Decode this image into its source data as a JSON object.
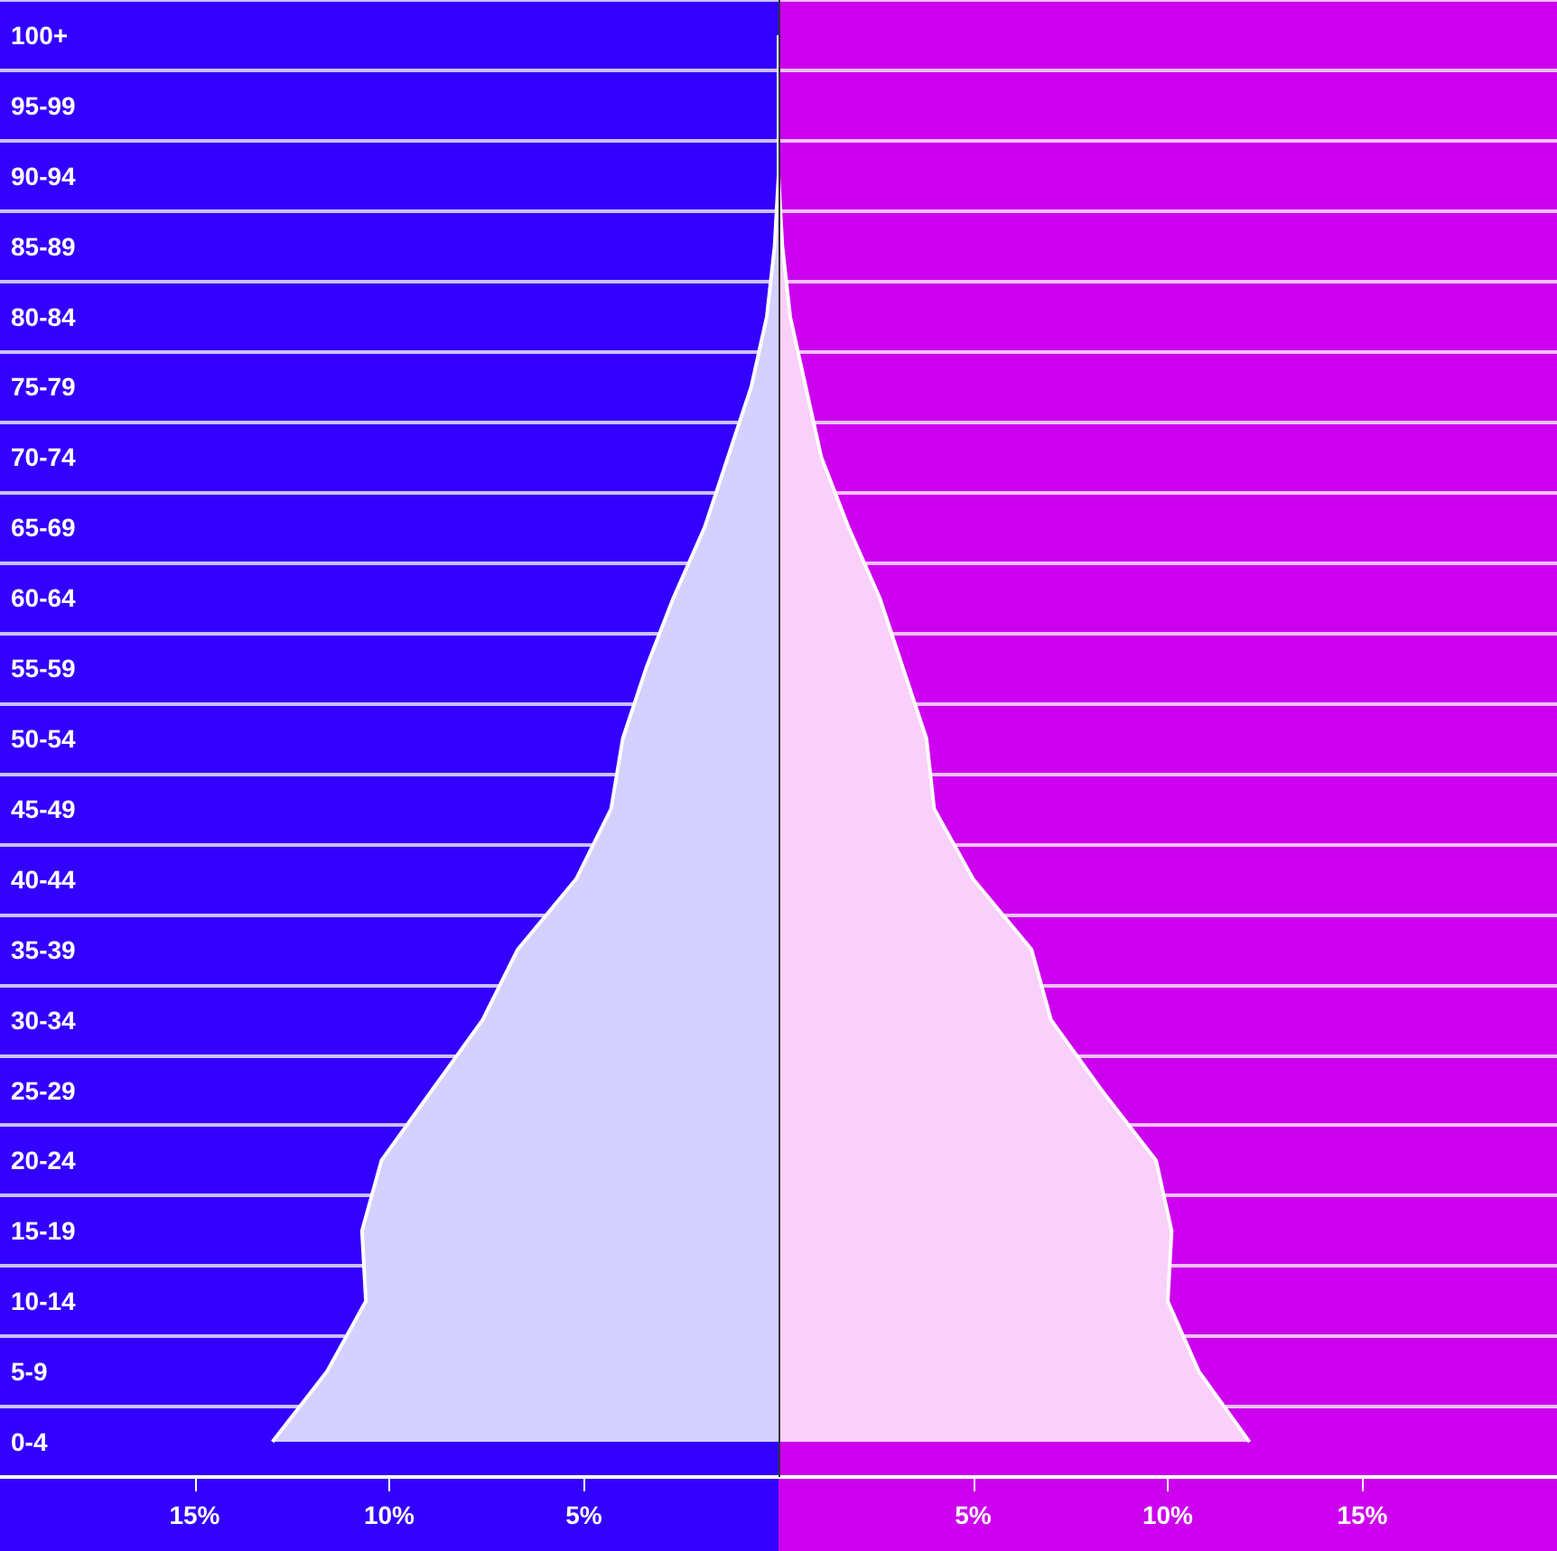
{
  "chart_data": {
    "type": "area",
    "orientation": "horizontal",
    "categories": [
      "100+",
      "95-99",
      "90-94",
      "85-89",
      "80-84",
      "75-79",
      "70-74",
      "65-69",
      "60-64",
      "55-59",
      "50-54",
      "45-49",
      "40-44",
      "35-39",
      "30-34",
      "25-29",
      "20-24",
      "15-19",
      "10-14",
      "5-9",
      "0-4"
    ],
    "series": [
      {
        "color": "#d4d0ff",
        "values": [
          0,
          0,
          0,
          -0.1,
          -0.3,
          -0.7,
          -1.3,
          -1.9,
          -2.7,
          -3.4,
          -4.0,
          -4.3,
          -5.2,
          -6.7,
          -7.6,
          -8.9,
          -10.2,
          -10.7,
          -10.6,
          -11.6,
          -13.0
        ]
      },
      {
        "color": "#f9d0f9",
        "values": [
          0,
          0,
          0,
          0.1,
          0.3,
          0.7,
          1.1,
          1.8,
          2.6,
          3.2,
          3.8,
          4.0,
          5.0,
          6.5,
          7.0,
          8.3,
          9.7,
          10.1,
          10.0,
          10.8,
          12.1
        ]
      }
    ],
    "xlim": [
      -20,
      20
    ],
    "xticks": [
      {
        "value": -15,
        "label": "15%"
      },
      {
        "value": -10,
        "label": "10%"
      },
      {
        "value": -5,
        "label": "5%"
      },
      {
        "value": 5,
        "label": "5%"
      },
      {
        "value": 10,
        "label": "10%"
      },
      {
        "value": 15,
        "label": "15%"
      }
    ],
    "bands": [
      {
        "axis": "x",
        "from": -20,
        "to": 0,
        "color": "#3300ff"
      },
      {
        "axis": "x",
        "from": 0,
        "to": 20,
        "color": "#cc00ee"
      }
    ],
    "ref_lines": [
      {
        "axis": "x",
        "value": 0,
        "color": "#333333"
      }
    ],
    "grid": "y",
    "marker": "none",
    "line_style": "solid"
  }
}
